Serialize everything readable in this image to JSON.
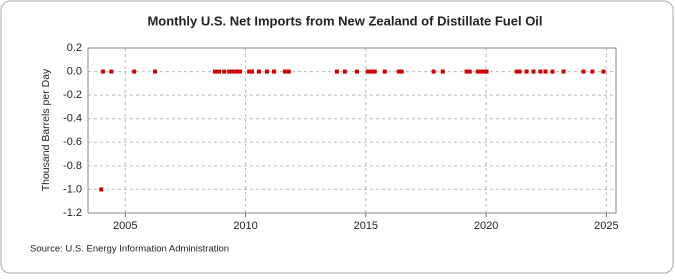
{
  "chart_data": {
    "type": "scatter",
    "title": "Monthly U.S. Net Imports from New Zealand of Distillate Fuel Oil",
    "y_label": "Thousand Barrels per Day",
    "source": "Source: U.S. Energy Information Administration",
    "color": "#cc0000",
    "grid": true,
    "x": [
      2004.0,
      2004.08,
      2004.42,
      2005.37,
      2006.24,
      2008.73,
      2008.9,
      2009.11,
      2009.32,
      2009.44,
      2009.61,
      2009.77,
      2010.15,
      2010.27,
      2010.56,
      2010.89,
      2011.18,
      2011.64,
      2011.8,
      2013.8,
      2014.13,
      2014.63,
      2015.08,
      2015.21,
      2015.37,
      2015.79,
      2016.37,
      2016.49,
      2017.82,
      2018.2,
      2019.19,
      2019.32,
      2019.65,
      2019.77,
      2019.9,
      2020.02,
      2021.27,
      2021.39,
      2021.68,
      2021.97,
      2022.26,
      2022.47,
      2022.76,
      2023.22,
      2024.05,
      2024.42,
      2024.88
    ],
    "values": [
      -1.0,
      0,
      0,
      0,
      0,
      0,
      0,
      0,
      0,
      0,
      0,
      0,
      0,
      0,
      0,
      0,
      0,
      0,
      0,
      0,
      0,
      0,
      0,
      0,
      0,
      0,
      0,
      0,
      0,
      0,
      0,
      0,
      0,
      0,
      0,
      0,
      0,
      0,
      0,
      0,
      0,
      0,
      0,
      0,
      0,
      0,
      0
    ],
    "xlim": [
      2003.45,
      2025.4
    ],
    "xticks": [
      2005,
      2010,
      2015,
      2020,
      2025
    ],
    "ylim": [
      -1.2,
      0.2
    ],
    "yticks": [
      0.2,
      {
        "value": 0,
        "label": "0.0"
      },
      -0.2,
      -0.4,
      -0.6,
      -0.8,
      {
        "value": -1.0,
        "label": "-1.0"
      },
      -1.2
    ]
  }
}
